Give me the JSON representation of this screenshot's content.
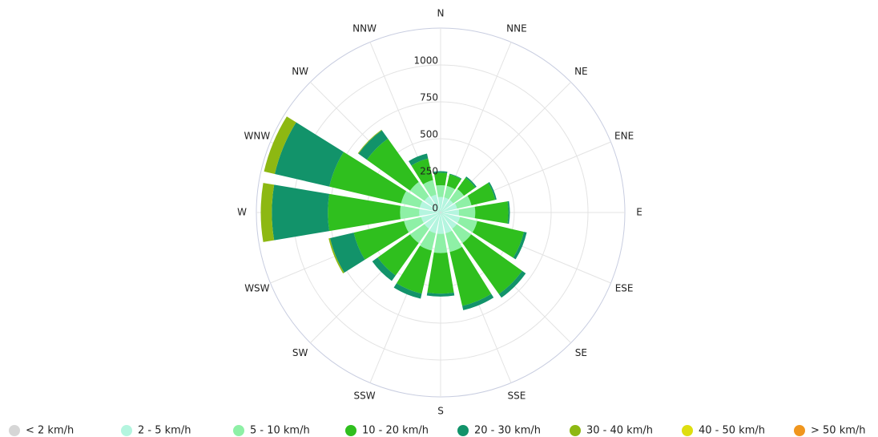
{
  "chart_data": {
    "type": "windrose",
    "categories": [
      "N",
      "NNE",
      "NE",
      "ENE",
      "E",
      "ESE",
      "SE",
      "SSE",
      "S",
      "SSW",
      "SW",
      "WSW",
      "W",
      "WNW",
      "NW",
      "NNW"
    ],
    "ylim": [
      0,
      1250
    ],
    "yticks": [
      0,
      250,
      500,
      750,
      1000
    ],
    "grid": true,
    "legend": "bottom",
    "series": [
      {
        "name": "< 2 km/h",
        "color": "#d6d6d6",
        "values": [
          5,
          5,
          5,
          5,
          5,
          5,
          5,
          5,
          5,
          5,
          5,
          5,
          5,
          5,
          5,
          5
        ]
      },
      {
        "name": "2 - 5 km/h",
        "color": "#b4f5df",
        "values": [
          100,
          100,
          100,
          110,
          120,
          130,
          130,
          140,
          140,
          140,
          130,
          130,
          140,
          140,
          130,
          120
        ]
      },
      {
        "name": "5 - 10 km/h",
        "color": "#8ef0a6",
        "values": [
          80,
          80,
          90,
          100,
          110,
          120,
          120,
          130,
          130,
          120,
          120,
          120,
          130,
          130,
          120,
          100
        ]
      },
      {
        "name": "10 - 20 km/h",
        "color": "#2fbf1e",
        "values": [
          85,
          80,
          95,
          165,
          225,
          325,
          425,
          375,
          275,
          300,
          270,
          350,
          490,
          500,
          360,
          150
        ]
      },
      {
        "name": "20 - 30 km/h",
        "color": "#12936a",
        "values": [
          10,
          5,
          10,
          10,
          10,
          20,
          30,
          30,
          20,
          35,
          45,
          165,
          380,
          380,
          70,
          35
        ]
      },
      {
        "name": "30 - 40 km/h",
        "color": "#8db812",
        "values": [
          0,
          0,
          0,
          0,
          0,
          0,
          0,
          0,
          0,
          0,
          0,
          10,
          75,
          75,
          5,
          0
        ]
      },
      {
        "name": "40 - 50 km/h",
        "color": "#dede10",
        "values": [
          0,
          0,
          0,
          0,
          0,
          0,
          0,
          0,
          0,
          0,
          0,
          0,
          0,
          0,
          0,
          0
        ]
      },
      {
        "name": "> 50 km/h",
        "color": "#f0961e",
        "values": [
          0,
          0,
          0,
          0,
          0,
          0,
          0,
          0,
          0,
          0,
          0,
          0,
          0,
          0,
          0,
          0
        ]
      }
    ]
  }
}
